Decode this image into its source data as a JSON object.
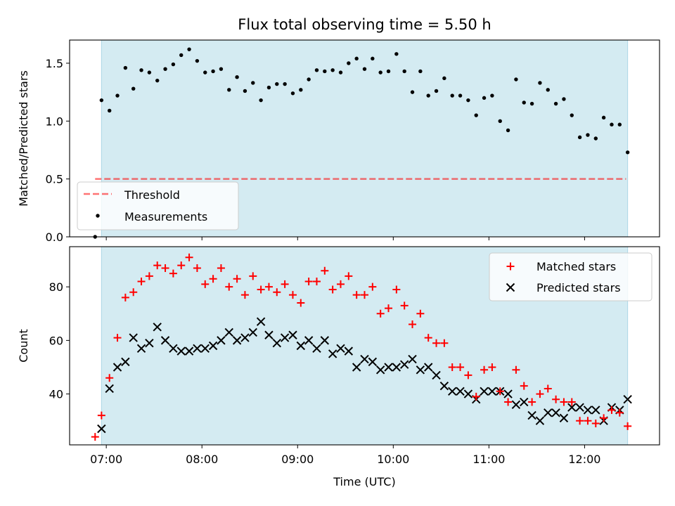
{
  "colors": {
    "shade": "#add8e6",
    "threshold": "#ff0000",
    "matched": "#ff0000",
    "predicted": "#000000",
    "measurements": "#000000"
  },
  "chart_data": [
    {
      "type": "scatter",
      "title": "Flux total observing time = 5.50 h",
      "xlabel": "",
      "ylabel": "Matched/Predicted stars",
      "xlim": [
        "06:37",
        "12:47"
      ],
      "ylim": [
        0,
        1.7
      ],
      "yticks": [
        "0.0",
        "0.5",
        "1.0",
        "1.5"
      ],
      "shaded_region": [
        "06:57",
        "12:27"
      ],
      "legend_position": "lower-left",
      "threshold": {
        "name": "Threshold",
        "value": 0.5,
        "x_range": [
          "06:53",
          "12:26"
        ]
      },
      "series": [
        {
          "name": "Measurements",
          "x": [
            "06:53",
            "06:57",
            "07:02",
            "07:07",
            "07:12",
            "07:17",
            "07:22",
            "07:27",
            "07:32",
            "07:37",
            "07:42",
            "07:47",
            "07:52",
            "07:57",
            "08:02",
            "08:07",
            "08:12",
            "08:17",
            "08:22",
            "08:27",
            "08:32",
            "08:37",
            "08:42",
            "08:47",
            "08:52",
            "08:57",
            "09:02",
            "09:07",
            "09:12",
            "09:17",
            "09:22",
            "09:27",
            "09:32",
            "09:37",
            "09:42",
            "09:47",
            "09:52",
            "09:57",
            "10:02",
            "10:07",
            "10:12",
            "10:17",
            "10:22",
            "10:27",
            "10:32",
            "10:37",
            "10:42",
            "10:47",
            "10:52",
            "10:57",
            "11:02",
            "11:07",
            "11:12",
            "11:17",
            "11:22",
            "11:27",
            "11:32",
            "11:37",
            "11:42",
            "11:47",
            "11:52",
            "11:57",
            "12:02",
            "12:07",
            "12:12",
            "12:17",
            "12:22",
            "12:27"
          ],
          "y": [
            0.0,
            1.18,
            1.09,
            1.22,
            1.46,
            1.28,
            1.44,
            1.42,
            1.35,
            1.45,
            1.49,
            1.57,
            1.62,
            1.52,
            1.42,
            1.43,
            1.45,
            1.27,
            1.38,
            1.26,
            1.33,
            1.18,
            1.29,
            1.32,
            1.32,
            1.24,
            1.27,
            1.36,
            1.44,
            1.43,
            1.44,
            1.42,
            1.5,
            1.54,
            1.45,
            1.54,
            1.42,
            1.43,
            1.58,
            1.43,
            1.25,
            1.43,
            1.22,
            1.26,
            1.37,
            1.22,
            1.22,
            1.18,
            1.05,
            1.2,
            1.22,
            1.0,
            0.92,
            1.36,
            1.16,
            1.15,
            1.33,
            1.27,
            1.15,
            1.19,
            1.05,
            0.86,
            0.88,
            0.85,
            1.03,
            0.97,
            0.97,
            0.73
          ]
        }
      ]
    },
    {
      "type": "scatter",
      "xlabel": "Time (UTC)",
      "ylabel": "Count",
      "xlim": [
        "06:37",
        "12:47"
      ],
      "ylim": [
        21,
        95
      ],
      "yticks": [
        "40",
        "60",
        "80"
      ],
      "xticks": [
        "07:00",
        "08:00",
        "09:00",
        "10:00",
        "11:00",
        "12:00"
      ],
      "shaded_region": [
        "06:57",
        "12:27"
      ],
      "legend_position": "top-right",
      "series": [
        {
          "name": "Matched stars",
          "x": [
            "06:53",
            "06:57",
            "07:02",
            "07:07",
            "07:12",
            "07:17",
            "07:22",
            "07:27",
            "07:32",
            "07:37",
            "07:42",
            "07:47",
            "07:52",
            "07:57",
            "08:02",
            "08:07",
            "08:12",
            "08:17",
            "08:22",
            "08:27",
            "08:32",
            "08:37",
            "08:42",
            "08:47",
            "08:52",
            "08:57",
            "09:02",
            "09:07",
            "09:12",
            "09:17",
            "09:22",
            "09:27",
            "09:32",
            "09:37",
            "09:42",
            "09:47",
            "09:52",
            "09:57",
            "10:02",
            "10:07",
            "10:12",
            "10:17",
            "10:22",
            "10:27",
            "10:32",
            "10:37",
            "10:42",
            "10:47",
            "10:52",
            "10:57",
            "11:02",
            "11:07",
            "11:12",
            "11:17",
            "11:22",
            "11:27",
            "11:32",
            "11:37",
            "11:42",
            "11:47",
            "11:52",
            "11:57",
            "12:02",
            "12:07",
            "12:12",
            "12:17",
            "12:22",
            "12:27"
          ],
          "y": [
            24,
            32,
            46,
            61,
            76,
            78,
            82,
            84,
            88,
            87,
            85,
            88,
            91,
            87,
            81,
            83,
            87,
            80,
            83,
            77,
            84,
            79,
            80,
            78,
            81,
            77,
            74,
            82,
            82,
            86,
            79,
            81,
            84,
            77,
            77,
            80,
            70,
            72,
            79,
            73,
            66,
            70,
            61,
            59,
            59,
            50,
            50,
            47,
            39,
            49,
            50,
            41,
            37,
            49,
            43,
            37,
            40,
            42,
            38,
            37,
            37,
            30,
            30,
            29,
            31,
            34,
            33,
            28
          ]
        },
        {
          "name": "Predicted stars",
          "x": [
            "06:57",
            "07:02",
            "07:07",
            "07:12",
            "07:17",
            "07:22",
            "07:27",
            "07:32",
            "07:37",
            "07:42",
            "07:47",
            "07:52",
            "07:57",
            "08:02",
            "08:07",
            "08:12",
            "08:17",
            "08:22",
            "08:27",
            "08:32",
            "08:37",
            "08:42",
            "08:47",
            "08:52",
            "08:57",
            "09:02",
            "09:07",
            "09:12",
            "09:17",
            "09:22",
            "09:27",
            "09:32",
            "09:37",
            "09:42",
            "09:47",
            "09:52",
            "09:57",
            "10:02",
            "10:07",
            "10:12",
            "10:17",
            "10:22",
            "10:27",
            "10:32",
            "10:37",
            "10:42",
            "10:47",
            "10:52",
            "10:57",
            "11:02",
            "11:07",
            "11:12",
            "11:17",
            "11:22",
            "11:27",
            "11:32",
            "11:37",
            "11:42",
            "11:47",
            "11:52",
            "11:57",
            "12:02",
            "12:07",
            "12:12",
            "12:17",
            "12:22",
            "12:27"
          ],
          "y": [
            27,
            42,
            50,
            52,
            61,
            57,
            59,
            65,
            60,
            57,
            56,
            56,
            57,
            57,
            58,
            60,
            63,
            60,
            61,
            63,
            67,
            62,
            59,
            61,
            62,
            58,
            60,
            57,
            60,
            55,
            57,
            56,
            50,
            53,
            52,
            49,
            50,
            50,
            51,
            53,
            49,
            50,
            47,
            43,
            41,
            41,
            40,
            38,
            41,
            41,
            41,
            40,
            36,
            37,
            32,
            30,
            33,
            33,
            31,
            35,
            35,
            34,
            34,
            30,
            35,
            34,
            38
          ]
        }
      ]
    }
  ]
}
